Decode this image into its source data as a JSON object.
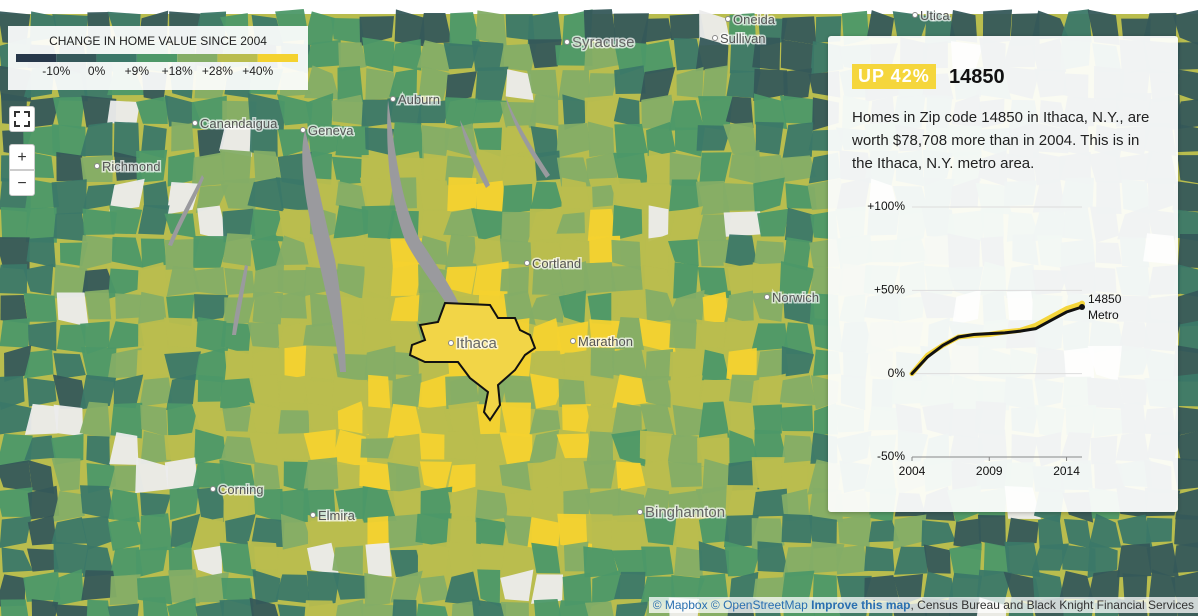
{
  "legend": {
    "title": "CHANGE IN HOME VALUE SINCE 2004",
    "colors": [
      "#27384a",
      "#35585a",
      "#3b7868",
      "#4c9868",
      "#84ad66",
      "#b9bd4e",
      "#f4d22f"
    ],
    "labels": [
      "-10%",
      "0%",
      "+9%",
      "+18%",
      "+28%",
      "+40%"
    ]
  },
  "controls": {
    "zoom_in": "+",
    "zoom_out": "−"
  },
  "places": [
    "Oneida",
    "Utica",
    "Syracuse",
    "Sullivan",
    "Auburn",
    "Canandaigua",
    "Geneva",
    "Richmond",
    "Cortland",
    "Norwich",
    "Marathon",
    "Ithaca",
    "Corning",
    "Elmira",
    "Binghamton"
  ],
  "panel": {
    "badge": "UP 42%",
    "zip": "14850",
    "description": "Homes in Zip code 14850 in Ithaca, N.Y., are worth $78,708 more than in 2004. This is in the Ithaca, N.Y. metro area."
  },
  "chart_data": {
    "type": "line",
    "x": [
      2004,
      2005,
      2006,
      2007,
      2008,
      2009,
      2010,
      2011,
      2012,
      2013,
      2014,
      2015
    ],
    "series": [
      {
        "name": "14850",
        "color": "#f5d63c",
        "values": [
          0,
          11,
          17,
          22,
          23,
          23.5,
          25,
          26,
          29,
          34,
          39,
          42
        ]
      },
      {
        "name": "Metro",
        "color": "#111111",
        "values": [
          0,
          10,
          17,
          22,
          23.5,
          24,
          24.5,
          25.5,
          27,
          32,
          37,
          40
        ]
      }
    ],
    "xlim": [
      2004,
      2015
    ],
    "xticks": [
      2004,
      2009,
      2014
    ],
    "ylim": [
      -50,
      100
    ],
    "yticks": [
      {
        "value": -50,
        "label": "-50%"
      },
      {
        "value": 0,
        "label": "0%"
      },
      {
        "value": 50,
        "label": "+50%"
      },
      {
        "value": 100,
        "label": "+100%"
      }
    ],
    "grid": true
  },
  "attribution": {
    "mapbox": "© Mapbox",
    "osm": "© OpenStreetMap",
    "improve": "Improve this map",
    "sources": ", Census Bureau and Black Knight Financial Services"
  }
}
